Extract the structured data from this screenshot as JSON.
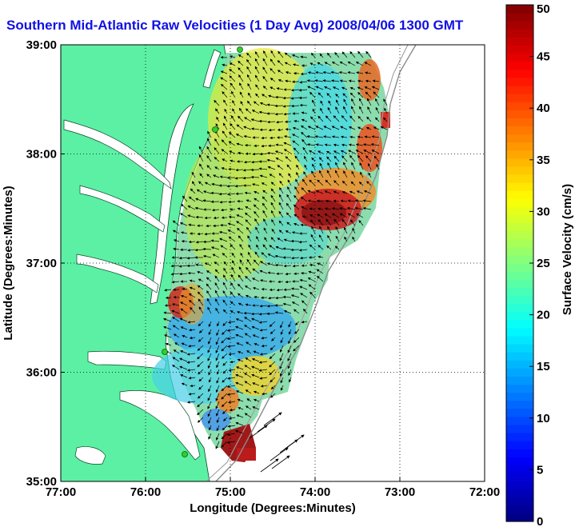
{
  "chart_data": {
    "type": "heatmap",
    "title": "Southern Mid-Atlantic Raw Velocities (1 Day Avg) 2008/04/06 1300 GMT",
    "xlabel": "Longitude (Degrees:Minutes)",
    "ylabel": "Latitude (Degrees:Minutes)",
    "xlim": [
      -77,
      -72
    ],
    "ylim": [
      35,
      39
    ],
    "x_ticks": [
      {
        "value": -77,
        "label": "77:00"
      },
      {
        "value": -76,
        "label": "76:00"
      },
      {
        "value": -75,
        "label": "75:00"
      },
      {
        "value": -74,
        "label": "74:00"
      },
      {
        "value": -73,
        "label": "73:00"
      },
      {
        "value": -72,
        "label": "72:00"
      }
    ],
    "y_ticks": [
      {
        "value": 35,
        "label": "35:00"
      },
      {
        "value": 36,
        "label": "36:00"
      },
      {
        "value": 37,
        "label": "37:00"
      },
      {
        "value": 38,
        "label": "38:00"
      },
      {
        "value": 39,
        "label": "39:00"
      }
    ],
    "grid": true,
    "colorbar": {
      "label": "Surface Velocity (cm/s)",
      "range": [
        0,
        50
      ],
      "ticks": [
        0,
        5,
        10,
        15,
        20,
        25,
        30,
        35,
        40,
        45,
        50
      ]
    },
    "colors": {
      "land": "#5cf0a4",
      "water": "#ffffff",
      "title": "#1010e6",
      "grid": "#000000"
    }
  }
}
